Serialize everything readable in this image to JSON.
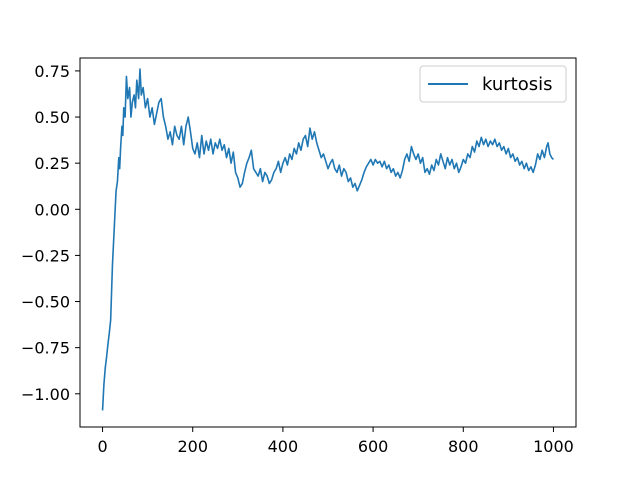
{
  "chart_data": {
    "type": "line",
    "title": "",
    "xlabel": "",
    "ylabel": "",
    "xlim": [
      -50,
      1050
    ],
    "ylim": [
      -1.18,
      0.82
    ],
    "xticks": [
      0,
      200,
      400,
      600,
      800,
      1000
    ],
    "xtick_labels": [
      "0",
      "200",
      "400",
      "600",
      "800",
      "1000"
    ],
    "yticks": [
      0.75,
      0.5,
      0.25,
      0.0,
      -0.25,
      -0.5,
      -0.75,
      -1.0
    ],
    "ytick_labels": [
      "0.75",
      "0.50",
      "0.25",
      "0.00",
      "−0.25",
      "−0.50",
      "−0.75",
      "−1.00"
    ],
    "grid": false,
    "legend_position": "top-right",
    "series": [
      {
        "name": "kurtosis",
        "color": "#1f77b4",
        "points": [
          [
            0,
            -1.09
          ],
          [
            3,
            -0.95
          ],
          [
            6,
            -0.86
          ],
          [
            9,
            -0.8
          ],
          [
            12,
            -0.73
          ],
          [
            15,
            -0.67
          ],
          [
            18,
            -0.6
          ],
          [
            20,
            -0.45
          ],
          [
            22,
            -0.3
          ],
          [
            24,
            -0.2
          ],
          [
            27,
            -0.05
          ],
          [
            30,
            0.1
          ],
          [
            33,
            0.15
          ],
          [
            36,
            0.28
          ],
          [
            38,
            0.22
          ],
          [
            40,
            0.33
          ],
          [
            43,
            0.45
          ],
          [
            45,
            0.4
          ],
          [
            47,
            0.55
          ],
          [
            50,
            0.5
          ],
          [
            53,
            0.72
          ],
          [
            56,
            0.6
          ],
          [
            60,
            0.66
          ],
          [
            63,
            0.5
          ],
          [
            66,
            0.58
          ],
          [
            70,
            0.62
          ],
          [
            73,
            0.55
          ],
          [
            76,
            0.7
          ],
          [
            80,
            0.6
          ],
          [
            83,
            0.76
          ],
          [
            86,
            0.62
          ],
          [
            90,
            0.66
          ],
          [
            95,
            0.55
          ],
          [
            100,
            0.6
          ],
          [
            105,
            0.5
          ],
          [
            110,
            0.55
          ],
          [
            115,
            0.46
          ],
          [
            120,
            0.52
          ],
          [
            125,
            0.58
          ],
          [
            130,
            0.6
          ],
          [
            135,
            0.5
          ],
          [
            140,
            0.45
          ],
          [
            145,
            0.38
          ],
          [
            150,
            0.42
          ],
          [
            155,
            0.35
          ],
          [
            160,
            0.45
          ],
          [
            165,
            0.4
          ],
          [
            170,
            0.38
          ],
          [
            175,
            0.45
          ],
          [
            180,
            0.35
          ],
          [
            185,
            0.45
          ],
          [
            190,
            0.5
          ],
          [
            195,
            0.42
          ],
          [
            200,
            0.33
          ],
          [
            205,
            0.3
          ],
          [
            210,
            0.36
          ],
          [
            215,
            0.28
          ],
          [
            220,
            0.4
          ],
          [
            225,
            0.3
          ],
          [
            230,
            0.37
          ],
          [
            235,
            0.32
          ],
          [
            240,
            0.38
          ],
          [
            245,
            0.3
          ],
          [
            250,
            0.36
          ],
          [
            255,
            0.33
          ],
          [
            260,
            0.38
          ],
          [
            265,
            0.32
          ],
          [
            270,
            0.35
          ],
          [
            275,
            0.28
          ],
          [
            280,
            0.33
          ],
          [
            285,
            0.25
          ],
          [
            290,
            0.31
          ],
          [
            295,
            0.2
          ],
          [
            300,
            0.17
          ],
          [
            305,
            0.12
          ],
          [
            310,
            0.14
          ],
          [
            315,
            0.2
          ],
          [
            320,
            0.25
          ],
          [
            325,
            0.28
          ],
          [
            330,
            0.32
          ],
          [
            335,
            0.22
          ],
          [
            340,
            0.2
          ],
          [
            345,
            0.18
          ],
          [
            350,
            0.22
          ],
          [
            355,
            0.15
          ],
          [
            360,
            0.2
          ],
          [
            365,
            0.18
          ],
          [
            370,
            0.14
          ],
          [
            375,
            0.16
          ],
          [
            380,
            0.2
          ],
          [
            385,
            0.22
          ],
          [
            390,
            0.26
          ],
          [
            395,
            0.2
          ],
          [
            400,
            0.25
          ],
          [
            405,
            0.28
          ],
          [
            410,
            0.24
          ],
          [
            415,
            0.3
          ],
          [
            420,
            0.27
          ],
          [
            425,
            0.33
          ],
          [
            430,
            0.3
          ],
          [
            435,
            0.36
          ],
          [
            440,
            0.32
          ],
          [
            445,
            0.38
          ],
          [
            450,
            0.4
          ],
          [
            455,
            0.34
          ],
          [
            460,
            0.44
          ],
          [
            465,
            0.38
          ],
          [
            470,
            0.42
          ],
          [
            475,
            0.36
          ],
          [
            480,
            0.32
          ],
          [
            485,
            0.28
          ],
          [
            490,
            0.3
          ],
          [
            495,
            0.26
          ],
          [
            500,
            0.22
          ],
          [
            505,
            0.25
          ],
          [
            510,
            0.27
          ],
          [
            515,
            0.22
          ],
          [
            520,
            0.2
          ],
          [
            525,
            0.24
          ],
          [
            530,
            0.18
          ],
          [
            535,
            0.22
          ],
          [
            540,
            0.2
          ],
          [
            545,
            0.15
          ],
          [
            550,
            0.17
          ],
          [
            555,
            0.12
          ],
          [
            560,
            0.14
          ],
          [
            565,
            0.1
          ],
          [
            570,
            0.13
          ],
          [
            575,
            0.16
          ],
          [
            580,
            0.2
          ],
          [
            585,
            0.23
          ],
          [
            590,
            0.25
          ],
          [
            595,
            0.27
          ],
          [
            600,
            0.24
          ],
          [
            605,
            0.27
          ],
          [
            610,
            0.25
          ],
          [
            615,
            0.26
          ],
          [
            620,
            0.23
          ],
          [
            625,
            0.26
          ],
          [
            630,
            0.22
          ],
          [
            635,
            0.24
          ],
          [
            640,
            0.2
          ],
          [
            645,
            0.22
          ],
          [
            650,
            0.18
          ],
          [
            655,
            0.2
          ],
          [
            660,
            0.17
          ],
          [
            665,
            0.21
          ],
          [
            670,
            0.27
          ],
          [
            675,
            0.3
          ],
          [
            680,
            0.26
          ],
          [
            685,
            0.34
          ],
          [
            690,
            0.3
          ],
          [
            695,
            0.27
          ],
          [
            700,
            0.3
          ],
          [
            705,
            0.25
          ],
          [
            710,
            0.28
          ],
          [
            715,
            0.2
          ],
          [
            720,
            0.22
          ],
          [
            725,
            0.19
          ],
          [
            730,
            0.24
          ],
          [
            735,
            0.21
          ],
          [
            740,
            0.27
          ],
          [
            745,
            0.24
          ],
          [
            750,
            0.3
          ],
          [
            755,
            0.26
          ],
          [
            760,
            0.22
          ],
          [
            765,
            0.28
          ],
          [
            770,
            0.24
          ],
          [
            775,
            0.27
          ],
          [
            780,
            0.22
          ],
          [
            785,
            0.25
          ],
          [
            790,
            0.2
          ],
          [
            795,
            0.23
          ],
          [
            800,
            0.27
          ],
          [
            805,
            0.25
          ],
          [
            810,
            0.3
          ],
          [
            815,
            0.28
          ],
          [
            820,
            0.34
          ],
          [
            825,
            0.31
          ],
          [
            830,
            0.37
          ],
          [
            835,
            0.34
          ],
          [
            840,
            0.39
          ],
          [
            845,
            0.35
          ],
          [
            850,
            0.38
          ],
          [
            855,
            0.34
          ],
          [
            860,
            0.37
          ],
          [
            865,
            0.35
          ],
          [
            870,
            0.38
          ],
          [
            875,
            0.34
          ],
          [
            880,
            0.36
          ],
          [
            885,
            0.32
          ],
          [
            890,
            0.34
          ],
          [
            895,
            0.3
          ],
          [
            900,
            0.33
          ],
          [
            905,
            0.28
          ],
          [
            910,
            0.3
          ],
          [
            915,
            0.26
          ],
          [
            920,
            0.28
          ],
          [
            925,
            0.24
          ],
          [
            930,
            0.26
          ],
          [
            935,
            0.22
          ],
          [
            940,
            0.25
          ],
          [
            945,
            0.21
          ],
          [
            950,
            0.23
          ],
          [
            955,
            0.2
          ],
          [
            960,
            0.24
          ],
          [
            965,
            0.3
          ],
          [
            970,
            0.27
          ],
          [
            975,
            0.32
          ],
          [
            980,
            0.28
          ],
          [
            985,
            0.34
          ],
          [
            988,
            0.36
          ],
          [
            992,
            0.3
          ],
          [
            996,
            0.28
          ],
          [
            1000,
            0.27
          ]
        ]
      }
    ]
  }
}
